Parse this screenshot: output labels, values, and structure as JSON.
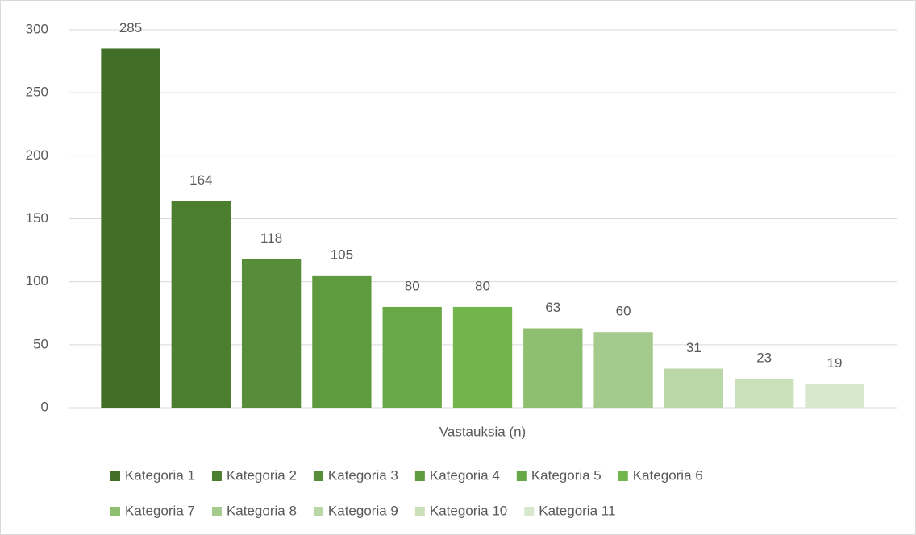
{
  "chart_data": {
    "type": "bar",
    "categories": [
      "Vastauksia (n)"
    ],
    "series": [
      {
        "name": "Kategoria 1",
        "color": "#426f28",
        "values": [
          285
        ]
      },
      {
        "name": "Kategoria 2",
        "color": "#4b7e2e",
        "values": [
          164
        ]
      },
      {
        "name": "Kategoria 3",
        "color": "#578c38",
        "values": [
          118
        ]
      },
      {
        "name": "Kategoria 4",
        "color": "#5f9a3f",
        "values": [
          105
        ]
      },
      {
        "name": "Kategoria 5",
        "color": "#69a846",
        "values": [
          80
        ]
      },
      {
        "name": "Kategoria 6",
        "color": "#73b54d",
        "values": [
          80
        ]
      },
      {
        "name": "Kategoria 7",
        "color": "#8ebf70",
        "values": [
          63
        ]
      },
      {
        "name": "Kategoria 8",
        "color": "#a4ca8c",
        "values": [
          60
        ]
      },
      {
        "name": "Kategoria 9",
        "color": "#bad7a7",
        "values": [
          31
        ]
      },
      {
        "name": "Kategoria 10",
        "color": "#c9e0ba",
        "values": [
          23
        ]
      },
      {
        "name": "Kategoria 11",
        "color": "#d8e8cd",
        "values": [
          19
        ]
      }
    ],
    "ylim": [
      0,
      300
    ],
    "yticks": [
      0,
      50,
      100,
      150,
      200,
      250,
      300
    ],
    "grid": true,
    "legend": "bottom"
  }
}
